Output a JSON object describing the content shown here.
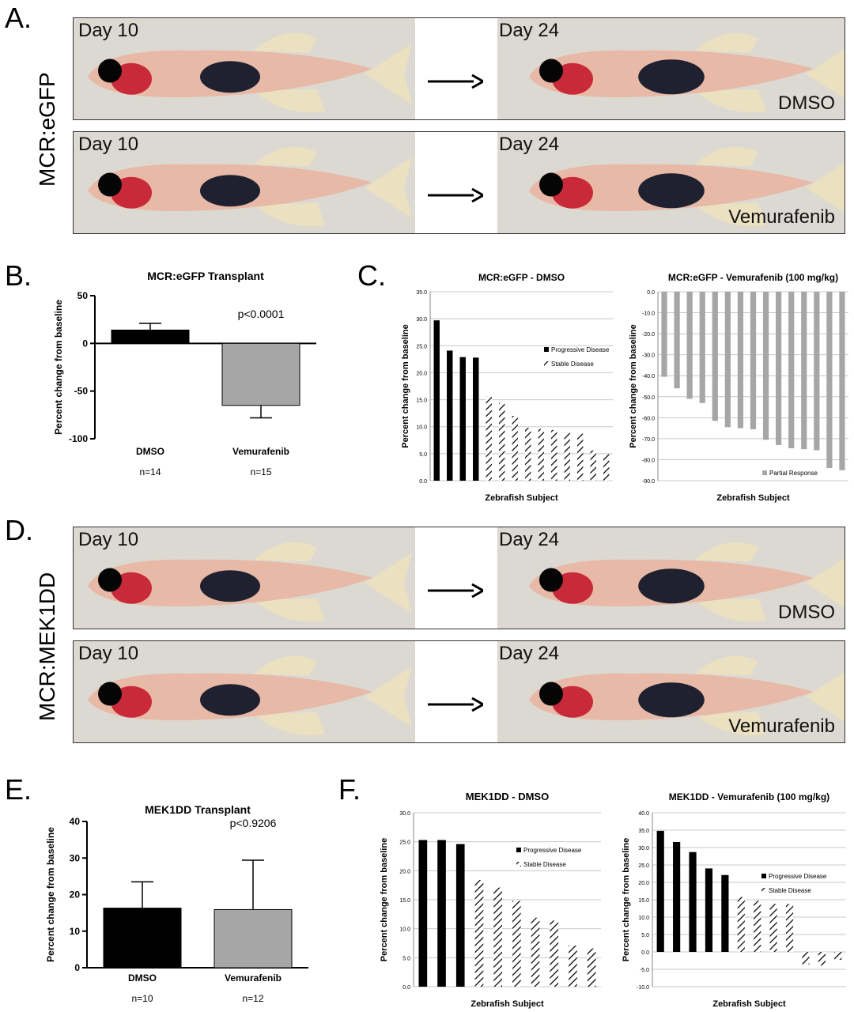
{
  "panels": {
    "A": {
      "letter": "A.",
      "side_label": "MCR:eGFP",
      "rows": [
        {
          "day_left": "Day 10",
          "day_right": "Day 24",
          "condition": "DMSO"
        },
        {
          "day_left": "Day 10",
          "day_right": "Day 24",
          "condition": "Vemurafenib"
        }
      ]
    },
    "D": {
      "letter": "D.",
      "side_label": "MCR:MEK1DD",
      "rows": [
        {
          "day_left": "Day 10",
          "day_right": "Day 24",
          "condition": "DMSO"
        },
        {
          "day_left": "Day 10",
          "day_right": "Day 24",
          "condition": "Vemurafenib"
        }
      ]
    },
    "B": {
      "letter": "B."
    },
    "C": {
      "letter": "C."
    },
    "E": {
      "letter": "E."
    },
    "F": {
      "letter": "F."
    }
  },
  "chart_data": [
    {
      "id": "B",
      "type": "bar",
      "title": "MCR:eGFP Transplant",
      "ylabel": "Percent change from baseline",
      "categories": [
        "DMSO",
        "Vemurafenib"
      ],
      "sublabels": [
        "n=14",
        "n=15"
      ],
      "values": [
        14,
        -65
      ],
      "errors": [
        7,
        13
      ],
      "colors": [
        "#000000",
        "#a6a6a6"
      ],
      "ylim": [
        -100,
        50
      ],
      "yticks": [
        "50",
        "0",
        "-50",
        "-100"
      ],
      "annotation": "p<0.0001"
    },
    {
      "id": "C1",
      "type": "bar",
      "title": "MCR:eGFP - DMSO",
      "xlabel": "Zebrafish Subject",
      "ylabel": "Percent change from baseline",
      "ylim": [
        0,
        35
      ],
      "yticks": [
        "35.0",
        "30.0",
        "25.0",
        "20.0",
        "15.0",
        "10.0",
        "5.0",
        "0.0"
      ],
      "progressive": [
        29.7,
        24.1,
        22.9,
        22.8
      ],
      "stable": [
        15.6,
        14.4,
        12.0,
        9.8,
        9.6,
        9.4,
        8.9,
        8.7,
        5.6,
        4.9
      ],
      "legend": [
        "Progressive Disease",
        "Stable Disease"
      ]
    },
    {
      "id": "C2",
      "type": "bar",
      "title": "MCR:eGFP - Vemurafenib (100 mg/kg)",
      "xlabel": "Zebrafish Subject",
      "ylabel": "Percent change from baseline",
      "ylim": [
        -90,
        0
      ],
      "yticks": [
        "0.0",
        "-10.0",
        "-20.0",
        "-30.0",
        "-40.0",
        "-50.0",
        "-60.0",
        "-70.0",
        "-80.0",
        "-90.0"
      ],
      "values": [
        -40.5,
        -46,
        -51,
        -53,
        -61.5,
        -64.5,
        -65,
        -65.5,
        -70.5,
        -73,
        -74.5,
        -75,
        -75.5,
        -84,
        -85
      ],
      "legend": [
        "Partial Response"
      ]
    },
    {
      "id": "E",
      "type": "bar",
      "title": "MEK1DD Transplant",
      "ylabel": "Percent change from baseline",
      "categories": [
        "DMSO",
        "Vemurafenib"
      ],
      "sublabels": [
        "n=10",
        "n=12"
      ],
      "values": [
        16.3,
        15.9
      ],
      "errors": [
        7.2,
        13.5
      ],
      "colors": [
        "#000000",
        "#a6a6a6"
      ],
      "ylim": [
        0,
        40
      ],
      "yticks": [
        "40",
        "30",
        "20",
        "10",
        "0"
      ],
      "annotation": "p<0.9206"
    },
    {
      "id": "F1",
      "type": "bar",
      "title": "MEK1DD - DMSO",
      "xlabel": "Zebrafish Subject",
      "ylabel": "Percent change from baseline",
      "ylim": [
        0,
        30
      ],
      "yticks": [
        "30.0",
        "25.0",
        "20.0",
        "15.0",
        "10.0",
        "5.0",
        "0.0"
      ],
      "progressive": [
        25.3,
        25.3,
        24.6
      ],
      "stable": [
        18.4,
        17.1,
        14.8,
        11.9,
        11.4,
        7.1,
        6.6
      ],
      "legend": [
        "Progressive Disease",
        "Stable Disease"
      ]
    },
    {
      "id": "F2",
      "type": "bar",
      "title": "MEK1DD - Vemurafenib (100 mg/kg)",
      "xlabel": "Zebrafish Subject",
      "ylabel": "Percent change from baseline",
      "ylim": [
        -10,
        40
      ],
      "yticks": [
        "40.0",
        "35.0",
        "30.0",
        "25.0",
        "20.0",
        "15.0",
        "10.0",
        "5.0",
        "0.0",
        "-5.0",
        "-10.0"
      ],
      "progressive": [
        34.8,
        31.6,
        28.7,
        24.0,
        22.1
      ],
      "stable": [
        15.8,
        14.7,
        13.8,
        13.8,
        -3.6,
        -3.9,
        -2.3
      ],
      "legend": [
        "Progressive Disease",
        "Stable Disease"
      ]
    }
  ]
}
